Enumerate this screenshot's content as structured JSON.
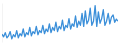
{
  "chart_data": {
    "type": "line",
    "color": "#3b8fd9",
    "tick_labels": false,
    "grid": false,
    "ylim": [
      30,
      105
    ],
    "values": [
      45,
      40,
      48,
      38,
      42,
      50,
      36,
      44,
      40,
      52,
      38,
      46,
      42,
      55,
      40,
      48,
      44,
      58,
      42,
      50,
      46,
      60,
      44,
      52,
      48,
      62,
      46,
      55,
      50,
      65,
      48,
      58,
      52,
      68,
      50,
      60,
      55,
      72,
      52,
      62,
      58,
      75,
      55,
      65,
      60,
      80,
      58,
      70,
      62,
      85,
      60,
      90,
      65,
      72,
      95,
      62,
      70,
      100,
      60,
      88,
      66,
      75,
      92,
      62,
      70,
      85,
      65,
      78,
      82,
      68,
      74,
      70
    ]
  }
}
